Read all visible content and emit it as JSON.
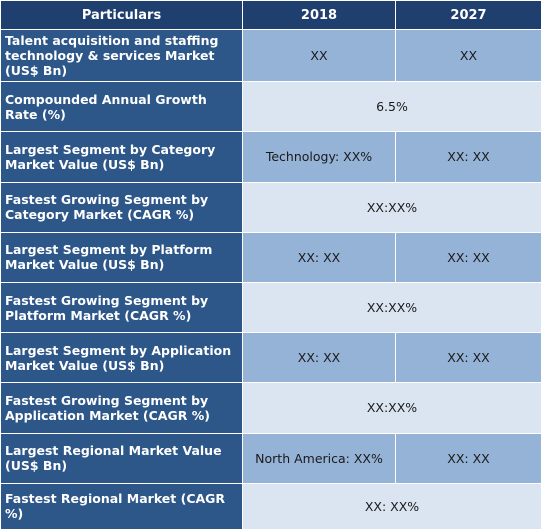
{
  "headers": [
    "Particulars",
    "2018",
    "2027"
  ],
  "rows": [
    {
      "label": "Talent acquisition and staffing technology & services Market (US$ Bn)",
      "v2018": "XX",
      "v2027": "XX"
    },
    {
      "label": "Compounded Annual Growth Rate (%)",
      "span": "6.5%"
    },
    {
      "label": "Largest Segment by Category Market Value (US$ Bn)",
      "v2018": "Technology: XX%",
      "v2027": "XX: XX"
    },
    {
      "label": "Fastest Growing Segment by Category Market (CAGR %)",
      "span": "XX:XX%"
    },
    {
      "label": "Largest Segment by Platform Market Value (US$ Bn)",
      "v2018": "XX: XX",
      "v2027": "XX: XX"
    },
    {
      "label": "Fastest Growing Segment by Platform Market (CAGR %)",
      "span": "XX:XX%"
    },
    {
      "label": "Largest Segment by Application Market Value (US$ Bn)",
      "v2018": "XX: XX",
      "v2027": "XX: XX"
    },
    {
      "label": "Fastest Growing Segment by Application Market (CAGR %)",
      "span": "XX:XX%"
    },
    {
      "label": "Largest Regional Market Value (US$ Bn)",
      "v2018": "North America: XX%",
      "v2027": "XX: XX"
    },
    {
      "label": "Fastest Regional Market (CAGR %)",
      "span": "XX: XX%"
    }
  ]
}
